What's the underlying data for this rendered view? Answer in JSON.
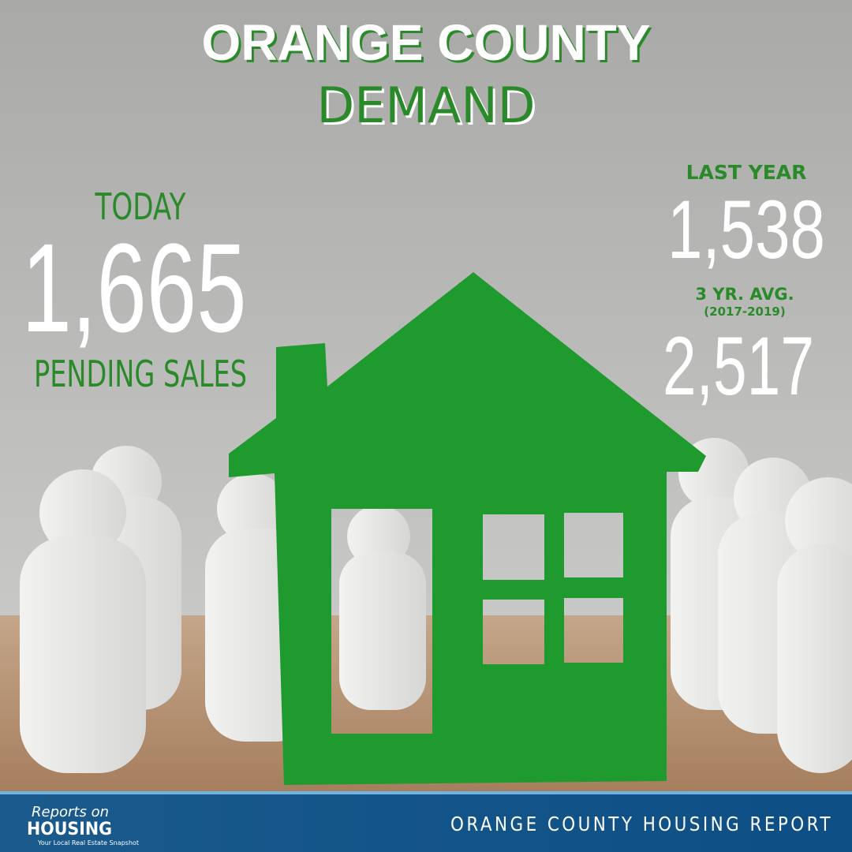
{
  "header": {
    "title_line1": "ORANGE COUNTY",
    "title_line2": "DEMAND"
  },
  "today": {
    "label": "TODAY",
    "value": "1,665",
    "caption": "PENDING SALES"
  },
  "last_year": {
    "label": "LAST YEAR",
    "value": "1,538"
  },
  "three_year_avg": {
    "label": "3 YR. AVG.",
    "period": "(2017-2019)",
    "value": "2,517"
  },
  "footer": {
    "logo_line1": "Reports on",
    "logo_line2": "HOUSING",
    "logo_tagline": "Your Local Real Estate Snapshot",
    "report_name": "ORANGE COUNTY HOUSING REPORT"
  }
}
